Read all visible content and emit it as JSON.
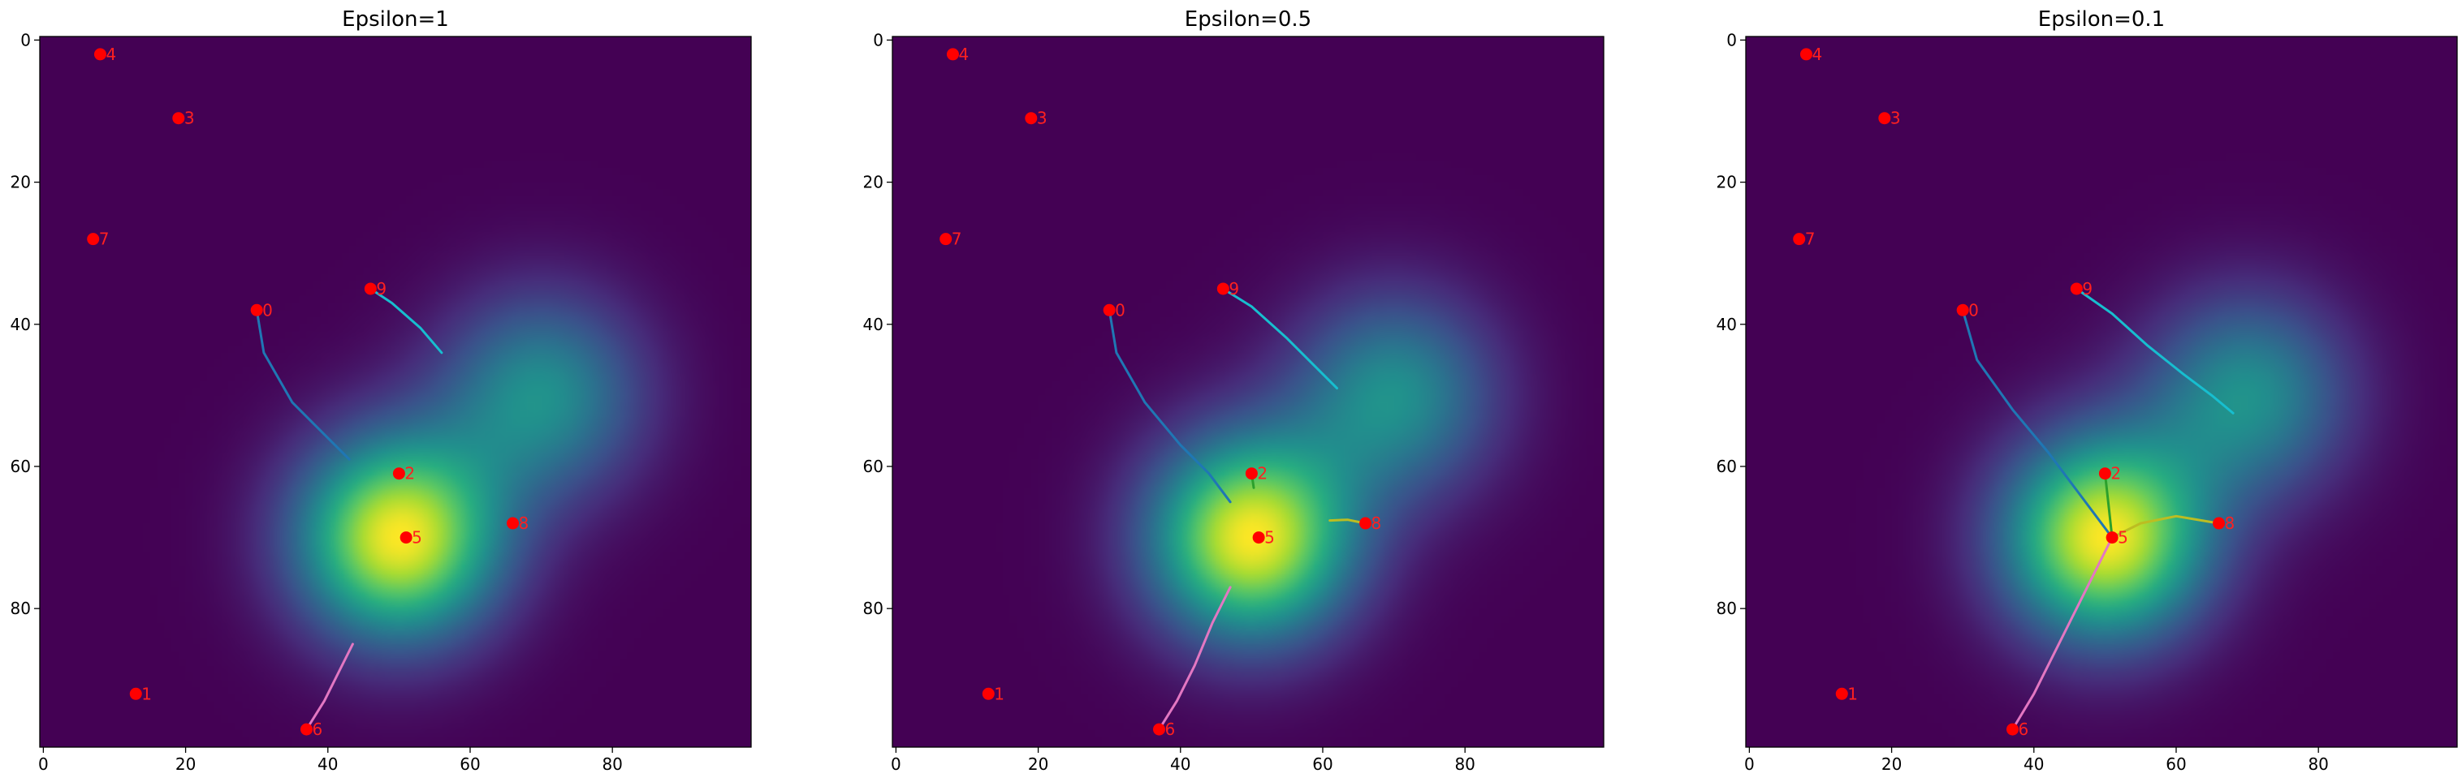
{
  "chart_data": [
    {
      "type": "heatmap",
      "title": "Epsilon=1",
      "x_ticks": [
        0,
        20,
        40,
        60,
        80
      ],
      "y_ticks": [
        0,
        20,
        40,
        60,
        80
      ],
      "xlim": [
        -0.5,
        99.5
      ],
      "ylim": [
        99.5,
        -0.5
      ],
      "grid": false,
      "field": {
        "colormap": "viridis",
        "peaks": [
          {
            "x": 50,
            "y": 70,
            "weight": 1.0,
            "sigma": 10
          },
          {
            "x": 70,
            "y": 50,
            "weight": 0.5,
            "sigma": 10
          }
        ]
      },
      "points": [
        {
          "label": "0",
          "x": 30,
          "y": 38
        },
        {
          "label": "1",
          "x": 13,
          "y": 92
        },
        {
          "label": "2",
          "x": 50,
          "y": 61
        },
        {
          "label": "3",
          "x": 19,
          "y": 11
        },
        {
          "label": "4",
          "x": 8,
          "y": 2
        },
        {
          "label": "5",
          "x": 51,
          "y": 70
        },
        {
          "label": "6",
          "x": 37,
          "y": 97
        },
        {
          "label": "7",
          "x": 7,
          "y": 28
        },
        {
          "label": "8",
          "x": 66,
          "y": 68
        },
        {
          "label": "9",
          "x": 46,
          "y": 35
        }
      ],
      "trajectories": [
        {
          "from": "0",
          "color": "#1f77b4",
          "points": [
            [
              30,
              38
            ],
            [
              31,
              44
            ],
            [
              35,
              51
            ],
            [
              40,
              56
            ],
            [
              43,
              59
            ]
          ]
        },
        {
          "from": "9",
          "color": "#17becf",
          "points": [
            [
              46,
              35
            ],
            [
              49,
              37
            ],
            [
              53,
              40.5
            ],
            [
              56,
              44
            ]
          ]
        },
        {
          "from": "6",
          "color": "#e377c2",
          "points": [
            [
              37,
              97
            ],
            [
              39.5,
              93
            ],
            [
              41.5,
              89
            ],
            [
              43.5,
              85
            ]
          ]
        }
      ]
    },
    {
      "type": "heatmap",
      "title": "Epsilon=0.5",
      "x_ticks": [
        0,
        20,
        40,
        60,
        80
      ],
      "y_ticks": [
        0,
        20,
        40,
        60,
        80
      ],
      "xlim": [
        -0.5,
        99.5
      ],
      "ylim": [
        99.5,
        -0.5
      ],
      "grid": false,
      "field": {
        "colormap": "viridis",
        "peaks": [
          {
            "x": 50,
            "y": 70,
            "weight": 1.0,
            "sigma": 10
          },
          {
            "x": 70,
            "y": 50,
            "weight": 0.5,
            "sigma": 10
          }
        ]
      },
      "points": [
        {
          "label": "0",
          "x": 30,
          "y": 38
        },
        {
          "label": "1",
          "x": 13,
          "y": 92
        },
        {
          "label": "2",
          "x": 50,
          "y": 61
        },
        {
          "label": "3",
          "x": 19,
          "y": 11
        },
        {
          "label": "4",
          "x": 8,
          "y": 2
        },
        {
          "label": "5",
          "x": 51,
          "y": 70
        },
        {
          "label": "6",
          "x": 37,
          "y": 97
        },
        {
          "label": "7",
          "x": 7,
          "y": 28
        },
        {
          "label": "8",
          "x": 66,
          "y": 68
        },
        {
          "label": "9",
          "x": 46,
          "y": 35
        }
      ],
      "trajectories": [
        {
          "from": "0",
          "color": "#1f77b4",
          "points": [
            [
              30,
              38
            ],
            [
              31,
              44
            ],
            [
              35,
              51
            ],
            [
              40,
              57
            ],
            [
              44,
              61
            ],
            [
              47,
              65
            ]
          ]
        },
        {
          "from": "9",
          "color": "#17becf",
          "points": [
            [
              46,
              35
            ],
            [
              50,
              37.5
            ],
            [
              55,
              42
            ],
            [
              59,
              46
            ],
            [
              62,
              49
            ]
          ]
        },
        {
          "from": "2",
          "color": "#2ca02c",
          "points": [
            [
              50,
              61
            ],
            [
              50.3,
              63
            ]
          ]
        },
        {
          "from": "8",
          "color": "#bcbd22",
          "points": [
            [
              66,
              68
            ],
            [
              63.5,
              67.5
            ],
            [
              61,
              67.6
            ]
          ]
        },
        {
          "from": "6",
          "color": "#e377c2",
          "points": [
            [
              37,
              97
            ],
            [
              39.5,
              93
            ],
            [
              42,
              88
            ],
            [
              44.5,
              82
            ],
            [
              47,
              77
            ]
          ]
        }
      ]
    },
    {
      "type": "heatmap",
      "title": "Epsilon=0.1",
      "x_ticks": [
        0,
        20,
        40,
        60,
        80
      ],
      "y_ticks": [
        0,
        20,
        40,
        60,
        80
      ],
      "xlim": [
        -0.5,
        99.5
      ],
      "ylim": [
        99.5,
        -0.5
      ],
      "grid": false,
      "field": {
        "colormap": "viridis",
        "peaks": [
          {
            "x": 50,
            "y": 70,
            "weight": 1.0,
            "sigma": 10
          },
          {
            "x": 70,
            "y": 50,
            "weight": 0.5,
            "sigma": 10
          }
        ]
      },
      "points": [
        {
          "label": "0",
          "x": 30,
          "y": 38
        },
        {
          "label": "1",
          "x": 13,
          "y": 92
        },
        {
          "label": "2",
          "x": 50,
          "y": 61
        },
        {
          "label": "3",
          "x": 19,
          "y": 11
        },
        {
          "label": "4",
          "x": 8,
          "y": 2
        },
        {
          "label": "5",
          "x": 51,
          "y": 70
        },
        {
          "label": "6",
          "x": 37,
          "y": 97
        },
        {
          "label": "7",
          "x": 7,
          "y": 28
        },
        {
          "label": "8",
          "x": 66,
          "y": 68
        },
        {
          "label": "9",
          "x": 46,
          "y": 35
        }
      ],
      "trajectories": [
        {
          "from": "0",
          "color": "#1f77b4",
          "points": [
            [
              30,
              38
            ],
            [
              32,
              45
            ],
            [
              37,
              52
            ],
            [
              42,
              58
            ],
            [
              46.5,
              64
            ],
            [
              51,
              70
            ]
          ]
        },
        {
          "from": "9",
          "color": "#17becf",
          "points": [
            [
              46,
              35
            ],
            [
              51,
              38.5
            ],
            [
              56,
              43
            ],
            [
              61,
              47
            ],
            [
              65,
              50
            ],
            [
              68,
              52.5
            ]
          ]
        },
        {
          "from": "2",
          "color": "#2ca02c",
          "points": [
            [
              50,
              61
            ],
            [
              50.5,
              65.5
            ],
            [
              51,
              70
            ]
          ]
        },
        {
          "from": "8",
          "color": "#bcbd22",
          "points": [
            [
              66,
              68
            ],
            [
              60,
              67
            ],
            [
              55,
              68
            ],
            [
              51,
              70
            ]
          ]
        },
        {
          "from": "6",
          "color": "#e377c2",
          "points": [
            [
              37,
              97
            ],
            [
              40,
              92
            ],
            [
              43,
              86
            ],
            [
              46.5,
              79
            ],
            [
              51,
              70
            ]
          ]
        }
      ]
    }
  ],
  "colors": {
    "marker": "#ff0000",
    "point_label": "#ff2020",
    "axis": "#000000",
    "background": "#ffffff"
  }
}
